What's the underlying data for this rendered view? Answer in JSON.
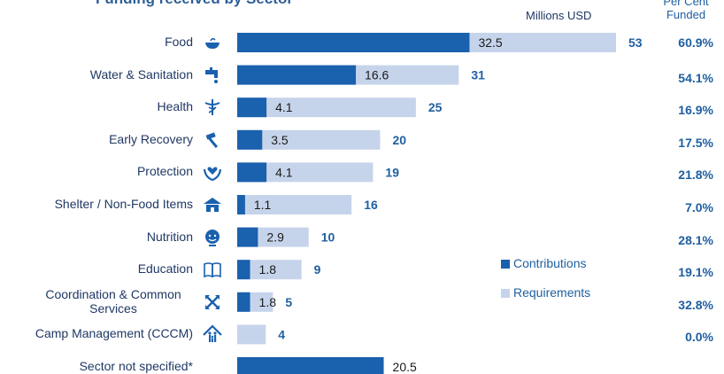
{
  "chart_data": {
    "type": "bar",
    "orientation": "horizontal",
    "title": "Funding received by Sector",
    "unit_label": "Millions USD",
    "percent_header": "Per Cent Funded",
    "categories": [
      "Food",
      "Water & Sanitation",
      "Health",
      "Early Recovery",
      "Protection",
      "Shelter / Non-Food Items",
      "Nutrition",
      "Education",
      "Coordination & Common Services",
      "Camp Management (CCCM)",
      "Sector not specified*"
    ],
    "series": [
      {
        "name": "Contributions",
        "color": "#1a61ae",
        "values": [
          32.5,
          16.6,
          4.1,
          3.5,
          4.1,
          1.1,
          2.9,
          1.8,
          1.8,
          0,
          20.5
        ]
      },
      {
        "name": "Requirements",
        "color": "#c6d4eb",
        "values": [
          53,
          31,
          25,
          20,
          19,
          16,
          10,
          9,
          5,
          4,
          null
        ]
      }
    ],
    "contribution_labels": [
      "32.5",
      "16.6",
      "4.1",
      "3.5",
      "4.1",
      "1.1",
      "2.9",
      "1.8",
      "1.8",
      "",
      "20.5"
    ],
    "requirement_labels": [
      "53",
      "31",
      "25",
      "20",
      "19",
      "16",
      "10",
      "9",
      "5",
      "4",
      ""
    ],
    "percent_funded": [
      "60.9%",
      "54.1%",
      "16.9%",
      "17.5%",
      "21.8%",
      "7.0%",
      "28.1%",
      "19.1%",
      "32.8%",
      "0.0%",
      ""
    ],
    "icons": [
      "bowl-icon",
      "tap-icon",
      "caduceus-icon",
      "hammer-icon",
      "hands-heart-icon",
      "shelter-icon",
      "child-face-icon",
      "book-icon",
      "arrows-cross-icon",
      "tent-family-icon",
      ""
    ],
    "xlim": [
      0,
      53
    ],
    "legend": {
      "position": "right-middle",
      "items": [
        "Contributions",
        "Requirements"
      ]
    },
    "grid": false
  }
}
